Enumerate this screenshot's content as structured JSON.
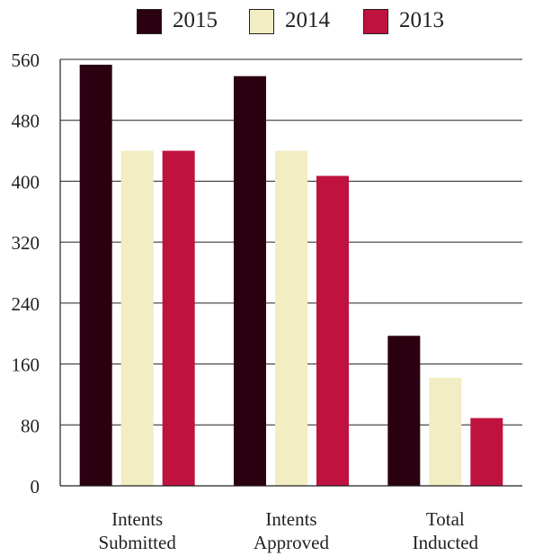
{
  "chart_data": {
    "type": "bar",
    "categories": [
      [
        "Intents",
        "Submitted"
      ],
      [
        "Intents",
        "Approved"
      ],
      [
        "Total",
        "Inducted"
      ]
    ],
    "series": [
      {
        "name": "2015",
        "color": "#2b0010",
        "values": [
          553,
          538,
          197
        ]
      },
      {
        "name": "2014",
        "color": "#f2edc2",
        "values": [
          440,
          440,
          142
        ]
      },
      {
        "name": "2013",
        "color": "#c0123f",
        "values": [
          440,
          407,
          89
        ]
      }
    ],
    "ylim": [
      0,
      560
    ],
    "yticks": [
      0,
      80,
      160,
      240,
      320,
      400,
      480,
      560
    ],
    "grid": true,
    "legend_position": "top"
  }
}
